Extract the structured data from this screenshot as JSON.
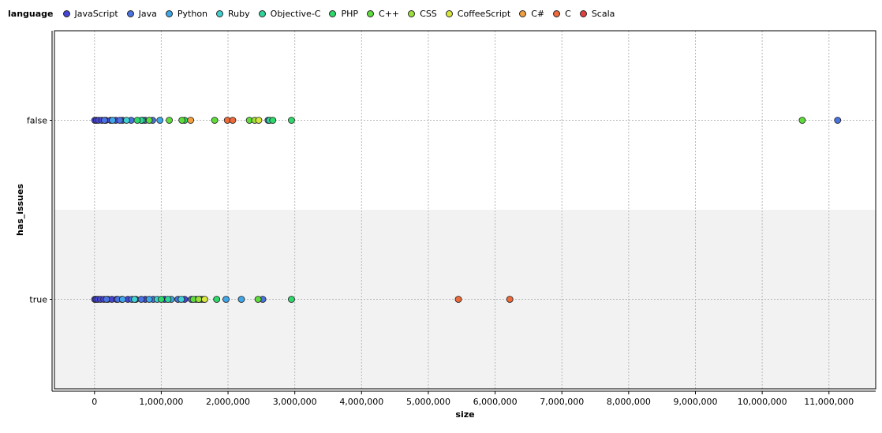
{
  "chart_data": {
    "type": "scatter",
    "xlabel": "size",
    "ylabel": "has_issues",
    "legend_title": "language",
    "legend_position": "top",
    "grid": true,
    "xlim": [
      -600000,
      11700000
    ],
    "x_ticks": [
      0,
      1000000,
      2000000,
      3000000,
      4000000,
      5000000,
      6000000,
      7000000,
      8000000,
      9000000,
      10000000,
      11000000
    ],
    "x_tick_labels": [
      "0",
      "1,000,000",
      "2,000,000",
      "3,000,000",
      "4,000,000",
      "5,000,000",
      "6,000,000",
      "7,000,000",
      "8,000,000",
      "9,000,000",
      "10,000,000",
      "11,000,000"
    ],
    "categories": [
      "true",
      "false"
    ],
    "series": [
      {
        "name": "JavaScript",
        "color": "#4646d6",
        "points": [
          {
            "x": 5000,
            "y": "false"
          },
          {
            "x": 30000,
            "y": "false"
          },
          {
            "x": 60000,
            "y": "false"
          },
          {
            "x": 110000,
            "y": "false"
          },
          {
            "x": 170000,
            "y": "false"
          },
          {
            "x": 240000,
            "y": "false"
          },
          {
            "x": 320000,
            "y": "false"
          },
          {
            "x": 420000,
            "y": "false"
          },
          {
            "x": 5000,
            "y": "true"
          },
          {
            "x": 25000,
            "y": "true"
          },
          {
            "x": 50000,
            "y": "true"
          },
          {
            "x": 90000,
            "y": "true"
          },
          {
            "x": 140000,
            "y": "true"
          },
          {
            "x": 200000,
            "y": "true"
          },
          {
            "x": 260000,
            "y": "true"
          },
          {
            "x": 330000,
            "y": "true"
          },
          {
            "x": 410000,
            "y": "true"
          },
          {
            "x": 500000,
            "y": "true"
          },
          {
            "x": 620000,
            "y": "true"
          },
          {
            "x": 760000,
            "y": "true"
          },
          {
            "x": 1050000,
            "y": "true"
          },
          {
            "x": 1350000,
            "y": "true"
          }
        ]
      },
      {
        "name": "Java",
        "color": "#4a72e0",
        "points": [
          {
            "x": 150000,
            "y": "false"
          },
          {
            "x": 380000,
            "y": "false"
          },
          {
            "x": 550000,
            "y": "false"
          },
          {
            "x": 760000,
            "y": "false"
          },
          {
            "x": 870000,
            "y": "false"
          },
          {
            "x": 2600000,
            "y": "false"
          },
          {
            "x": 11130000,
            "y": "false"
          },
          {
            "x": 180000,
            "y": "true"
          },
          {
            "x": 350000,
            "y": "true"
          },
          {
            "x": 560000,
            "y": "true"
          },
          {
            "x": 700000,
            "y": "true"
          },
          {
            "x": 880000,
            "y": "true"
          },
          {
            "x": 1250000,
            "y": "true"
          },
          {
            "x": 1450000,
            "y": "true"
          },
          {
            "x": 2520000,
            "y": "true"
          }
        ]
      },
      {
        "name": "Python",
        "color": "#3fa6e8",
        "points": [
          {
            "x": 270000,
            "y": "false"
          },
          {
            "x": 980000,
            "y": "false"
          },
          {
            "x": 420000,
            "y": "true"
          },
          {
            "x": 820000,
            "y": "true"
          },
          {
            "x": 1150000,
            "y": "true"
          },
          {
            "x": 1560000,
            "y": "true"
          },
          {
            "x": 1970000,
            "y": "true"
          },
          {
            "x": 2200000,
            "y": "true"
          }
        ]
      },
      {
        "name": "Ruby",
        "color": "#3fd0d0",
        "points": [
          {
            "x": 480000,
            "y": "false"
          },
          {
            "x": 720000,
            "y": "false"
          },
          {
            "x": 600000,
            "y": "true"
          },
          {
            "x": 940000,
            "y": "true"
          },
          {
            "x": 1300000,
            "y": "true"
          },
          {
            "x": 1520000,
            "y": "true"
          }
        ]
      },
      {
        "name": "Objective-C",
        "color": "#2fd69a",
        "points": [
          {
            "x": 700000,
            "y": "false"
          },
          {
            "x": 2620000,
            "y": "false"
          },
          {
            "x": 1100000,
            "y": "true"
          },
          {
            "x": 1600000,
            "y": "true"
          }
        ]
      },
      {
        "name": "PHP",
        "color": "#2ed86a",
        "points": [
          {
            "x": 640000,
            "y": "false"
          },
          {
            "x": 1350000,
            "y": "false"
          },
          {
            "x": 2670000,
            "y": "false"
          },
          {
            "x": 2950000,
            "y": "false"
          },
          {
            "x": 1000000,
            "y": "true"
          },
          {
            "x": 1830000,
            "y": "true"
          },
          {
            "x": 2950000,
            "y": "true"
          }
        ]
      },
      {
        "name": "C++",
        "color": "#5fdc3c",
        "points": [
          {
            "x": 820000,
            "y": "false"
          },
          {
            "x": 1120000,
            "y": "false"
          },
          {
            "x": 1310000,
            "y": "false"
          },
          {
            "x": 1800000,
            "y": "false"
          },
          {
            "x": 2320000,
            "y": "false"
          },
          {
            "x": 10600000,
            "y": "false"
          },
          {
            "x": 1480000,
            "y": "true"
          },
          {
            "x": 1640000,
            "y": "true"
          },
          {
            "x": 2450000,
            "y": "true"
          }
        ]
      },
      {
        "name": "CSS",
        "color": "#9be03a",
        "points": [
          {
            "x": 2400000,
            "y": "false"
          },
          {
            "x": 1560000,
            "y": "true"
          }
        ]
      },
      {
        "name": "CoffeeScript",
        "color": "#d8e63c",
        "points": [
          {
            "x": 2460000,
            "y": "false"
          },
          {
            "x": 1650000,
            "y": "true"
          }
        ]
      },
      {
        "name": "C#",
        "color": "#f0a040",
        "points": [
          {
            "x": 1440000,
            "y": "false"
          }
        ]
      },
      {
        "name": "C",
        "color": "#ee6a3a",
        "points": [
          {
            "x": 1990000,
            "y": "false"
          },
          {
            "x": 2070000,
            "y": "false"
          },
          {
            "x": 5450000,
            "y": "true"
          },
          {
            "x": 6220000,
            "y": "true"
          }
        ]
      },
      {
        "name": "Scala",
        "color": "#e04040",
        "points": []
      }
    ]
  }
}
